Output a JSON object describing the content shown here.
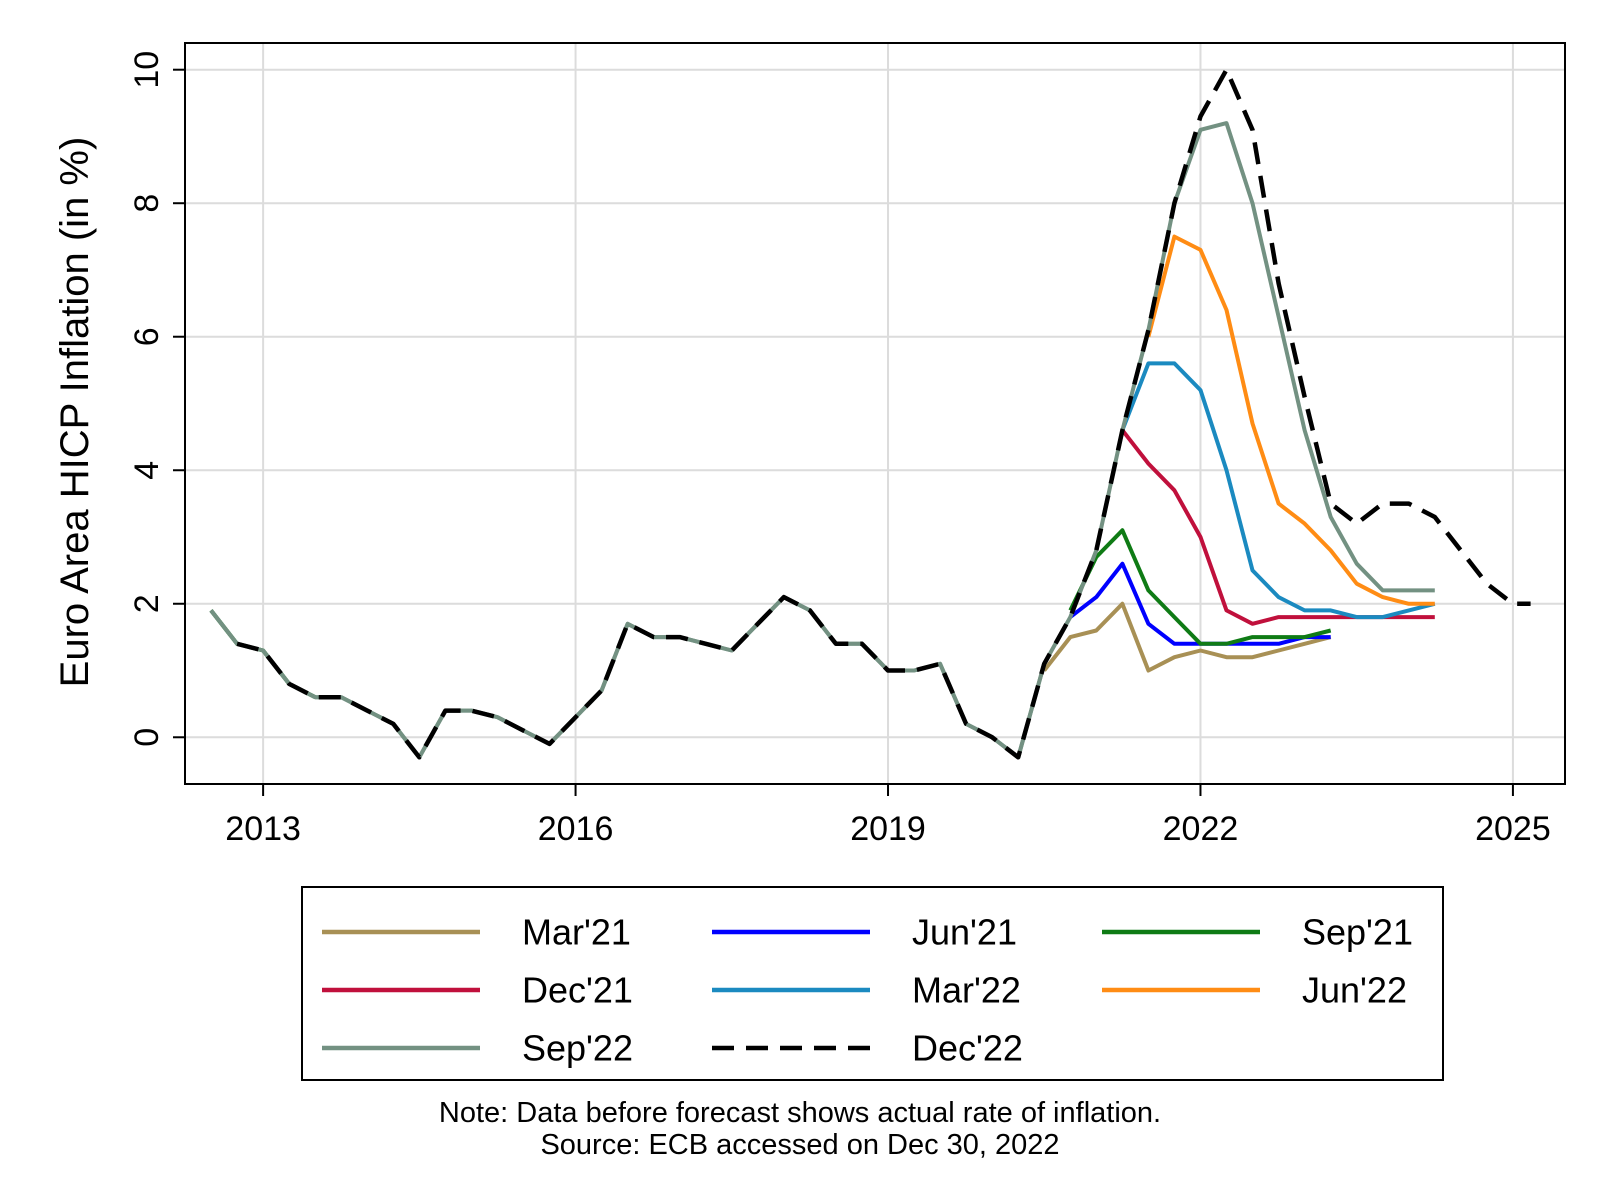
{
  "chart_data": {
    "type": "line",
    "ylabel": "Euro Area HICP Inflation (in %)",
    "xlabel": "",
    "xlim": [
      2012.25,
      2025.5
    ],
    "ylim": [
      -0.7,
      10.4
    ],
    "x_ticks": [
      2013,
      2016,
      2019,
      2022,
      2025
    ],
    "x_tick_labels": [
      "2013",
      "2016",
      "2019",
      "2022",
      "2025"
    ],
    "y_ticks": [
      0,
      2,
      4,
      6,
      8,
      10
    ],
    "y_tick_labels": [
      "0",
      "2",
      "4",
      "6",
      "8",
      "10"
    ],
    "grid": true,
    "legend_position": "bottom",
    "history": {
      "x": [
        2012.5,
        2012.75,
        2013.0,
        2013.25,
        2013.5,
        2013.75,
        2014.0,
        2014.25,
        2014.5,
        2014.75,
        2015.0,
        2015.25,
        2015.5,
        2015.75,
        2016.0,
        2016.25,
        2016.5,
        2016.75,
        2017.0,
        2017.25,
        2017.5,
        2017.75,
        2018.0,
        2018.25,
        2018.5,
        2018.75,
        2019.0,
        2019.25,
        2019.5,
        2019.75,
        2020.0,
        2020.25,
        2020.5
      ],
      "y": [
        1.9,
        1.4,
        1.3,
        0.8,
        0.6,
        0.6,
        0.4,
        0.2,
        -0.3,
        0.4,
        0.4,
        0.3,
        0.1,
        -0.1,
        0.3,
        0.7,
        1.7,
        1.5,
        1.5,
        1.4,
        1.3,
        1.7,
        2.1,
        1.9,
        1.4,
        1.4,
        1.0,
        1.0,
        1.1,
        0.2,
        0.0,
        -0.3,
        1.1
      ]
    },
    "series": [
      {
        "name": "Mar'21",
        "color": "#a89055",
        "dash": false,
        "x": [
          2020.5,
          2020.75,
          2021.0,
          2021.25,
          2021.5,
          2021.75,
          2022.0,
          2022.25,
          2022.5,
          2022.75,
          2023.0,
          2023.25
        ],
        "y": [
          1.0,
          1.5,
          1.6,
          2.0,
          1.0,
          1.2,
          1.3,
          1.2,
          1.2,
          1.3,
          1.4,
          1.5
        ]
      },
      {
        "name": "Jun'21",
        "color": "#0000ff",
        "dash": false,
        "x": [
          2020.75,
          2021.0,
          2021.25,
          2021.5,
          2021.75,
          2022.0,
          2022.25,
          2022.5,
          2022.75,
          2023.0,
          2023.25
        ],
        "y": [
          1.8,
          2.1,
          2.6,
          1.7,
          1.4,
          1.4,
          1.4,
          1.4,
          1.4,
          1.5,
          1.5
        ]
      },
      {
        "name": "Sep'21",
        "color": "#0f7b15",
        "dash": false,
        "x": [
          2012.5,
          2012.75,
          2013.0,
          2013.25,
          2013.5,
          2020.75,
          2021.0,
          2021.25,
          2021.5,
          2021.75,
          2022.0,
          2022.25,
          2022.5,
          2022.75,
          2023.0,
          2023.25
        ],
        "y": [
          1.9,
          1.4,
          1.3,
          0.8,
          0.6,
          1.9,
          2.7,
          3.1,
          2.2,
          1.8,
          1.4,
          1.4,
          1.5,
          1.5,
          1.5,
          1.6
        ]
      },
      {
        "name": "Dec'21",
        "color": "#c0103c",
        "dash": false,
        "x": [
          2021.25,
          2021.5,
          2021.75,
          2022.0,
          2022.25,
          2022.5,
          2022.75,
          2023.0,
          2023.25,
          2023.5,
          2023.75,
          2024.0,
          2024.25
        ],
        "y": [
          4.6,
          4.1,
          3.7,
          3.0,
          1.9,
          1.7,
          1.8,
          1.8,
          1.8,
          1.8,
          1.8,
          1.8,
          1.8
        ]
      },
      {
        "name": "Mar'22",
        "color": "#1b8ac0",
        "dash": false,
        "x": [
          2021.25,
          2021.5,
          2021.75,
          2022.0,
          2022.25,
          2022.5,
          2022.75,
          2023.0,
          2023.25,
          2023.5,
          2023.75,
          2024.0,
          2024.25
        ],
        "y": [
          4.6,
          5.6,
          5.6,
          5.2,
          4.0,
          2.5,
          2.1,
          1.9,
          1.9,
          1.8,
          1.8,
          1.9,
          2.0
        ]
      },
      {
        "name": "Jun'22",
        "color": "#ff8c14",
        "dash": false,
        "x": [
          2021.5,
          2021.75,
          2022.0,
          2022.25,
          2022.5,
          2022.75,
          2023.0,
          2023.25,
          2023.5,
          2023.75,
          2024.0,
          2024.25
        ],
        "y": [
          6.0,
          7.5,
          7.3,
          6.4,
          4.7,
          3.5,
          3.2,
          2.8,
          2.3,
          2.1,
          2.0,
          2.0
        ]
      },
      {
        "name": "Sep'22",
        "color": "#739182",
        "dash": false,
        "x": [
          2012.5,
          2012.75,
          2013.0,
          2013.25,
          2013.5,
          2013.75,
          2014.0,
          2014.25,
          2014.5,
          2014.75,
          2015.0,
          2015.25,
          2015.5,
          2015.75,
          2016.0,
          2016.25,
          2016.5,
          2016.75,
          2017.0,
          2017.25,
          2017.5,
          2017.75,
          2018.0,
          2018.25,
          2018.5,
          2018.75,
          2019.0,
          2019.25,
          2019.5,
          2019.75,
          2020.0,
          2020.25,
          2020.5,
          2020.75,
          2021.0,
          2021.25,
          2021.5,
          2021.75,
          2022.0,
          2022.25,
          2022.5,
          2022.75,
          2023.0,
          2023.25,
          2023.5,
          2023.75,
          2024.0,
          2024.25
        ],
        "y": [
          1.9,
          1.4,
          1.3,
          0.8,
          0.6,
          0.6,
          0.4,
          0.2,
          -0.3,
          0.4,
          0.4,
          0.3,
          0.1,
          -0.1,
          0.3,
          0.7,
          1.7,
          1.5,
          1.5,
          1.4,
          1.3,
          1.7,
          2.1,
          1.9,
          1.4,
          1.4,
          1.0,
          1.0,
          1.1,
          0.2,
          0.0,
          -0.3,
          1.1,
          1.8,
          2.8,
          4.6,
          6.1,
          8.0,
          9.1,
          9.2,
          8.0,
          6.3,
          4.6,
          3.3,
          2.6,
          2.2,
          2.2,
          2.2
        ]
      },
      {
        "name": "Dec'22",
        "color": "#000000",
        "dash": true,
        "x": [
          2012.75,
          2013.0,
          2013.25,
          2013.5,
          2013.75,
          2014.0,
          2014.25,
          2014.5,
          2014.75,
          2015.0,
          2015.25,
          2015.5,
          2015.75,
          2016.0,
          2016.25,
          2016.5,
          2016.75,
          2017.0,
          2017.25,
          2017.5,
          2017.75,
          2018.0,
          2018.25,
          2018.5,
          2018.75,
          2019.0,
          2019.25,
          2019.5,
          2019.75,
          2020.0,
          2020.25,
          2020.5,
          2020.75,
          2021.0,
          2021.25,
          2021.5,
          2021.75,
          2022.0,
          2022.25,
          2022.5,
          2022.75,
          2023.0,
          2023.25,
          2023.5,
          2023.75,
          2024.0,
          2024.25,
          2024.5,
          2024.75,
          2025.0,
          2025.17
        ],
        "y": [
          1.4,
          1.3,
          0.8,
          0.6,
          0.6,
          0.4,
          0.2,
          -0.3,
          0.4,
          0.4,
          0.3,
          0.1,
          -0.1,
          0.3,
          0.7,
          1.7,
          1.5,
          1.5,
          1.4,
          1.3,
          1.7,
          2.1,
          1.9,
          1.4,
          1.4,
          1.0,
          1.0,
          1.1,
          0.2,
          0.0,
          -0.3,
          1.1,
          1.8,
          2.8,
          4.6,
          6.1,
          8.0,
          9.3,
          10.0,
          9.1,
          6.8,
          5.1,
          3.5,
          3.2,
          3.5,
          3.5,
          3.3,
          2.8,
          2.3,
          2.0,
          2.0
        ]
      }
    ]
  },
  "note": {
    "line1": "Note: Data before forecast shows actual rate of inflation.",
    "line2": "Source: ECB accessed on Dec 30, 2022"
  }
}
